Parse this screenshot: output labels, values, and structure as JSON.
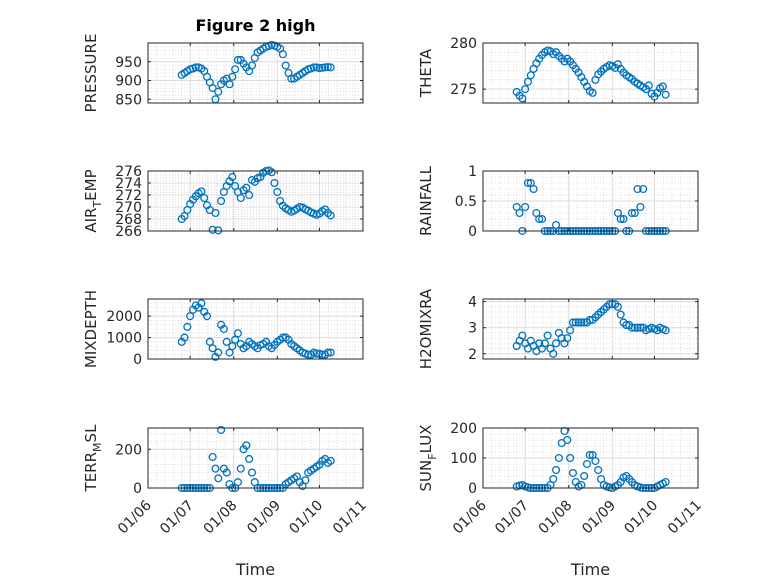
{
  "figure": {
    "title": "Figure 2 high",
    "marker_color": "#0072BD"
  },
  "chart_data": [
    {
      "type": "scatter",
      "ylabel": "PRESSURE",
      "title": "Figure 2 high",
      "ylim": [
        840,
        1000
      ],
      "yticks": [
        850,
        900,
        950
      ],
      "x": [
        "06/25",
        "06/27",
        "06/29",
        "07/01",
        "07/03",
        "07/05",
        "07/07",
        "07/09",
        "07/11",
        "07/13",
        "07/15",
        "07/17",
        "07/19",
        "07/21",
        "07/23",
        "07/25",
        "07/27",
        "07/29",
        "07/31",
        "08/02",
        "08/04",
        "08/06",
        "08/08",
        "08/10",
        "08/12",
        "08/14",
        "08/16",
        "08/18",
        "08/20",
        "08/22",
        "08/24",
        "08/26",
        "08/28",
        "08/30",
        "09/01",
        "09/03",
        "09/05",
        "09/07",
        "09/09",
        "09/11",
        "09/13",
        "09/15",
        "09/17",
        "09/19",
        "09/21",
        "09/23",
        "09/25",
        "09/27",
        "09/29",
        "10/01",
        "10/03",
        "10/05",
        "10/07",
        "10/09"
      ],
      "y": [
        915,
        920,
        925,
        930,
        932,
        935,
        935,
        932,
        925,
        910,
        895,
        880,
        850,
        870,
        890,
        900,
        905,
        890,
        910,
        930,
        955,
        955,
        945,
        935,
        925,
        940,
        960,
        975,
        980,
        985,
        990,
        992,
        995,
        993,
        990,
        985,
        970,
        940,
        920,
        905,
        905,
        910,
        915,
        920,
        925,
        930,
        932,
        935,
        935,
        933,
        934,
        935,
        936,
        935
      ]
    },
    {
      "type": "scatter",
      "ylabel": "THETA",
      "ylim": [
        273.5,
        280
      ],
      "yticks": [
        275,
        280
      ],
      "x": [
        "06/25",
        "06/27",
        "06/29",
        "07/01",
        "07/03",
        "07/05",
        "07/07",
        "07/09",
        "07/11",
        "07/13",
        "07/15",
        "07/17",
        "07/19",
        "07/21",
        "07/23",
        "07/25",
        "07/27",
        "07/29",
        "07/31",
        "08/02",
        "08/04",
        "08/06",
        "08/08",
        "08/10",
        "08/12",
        "08/14",
        "08/16",
        "08/18",
        "08/20",
        "08/22",
        "08/24",
        "08/26",
        "08/28",
        "08/30",
        "09/01",
        "09/03",
        "09/05",
        "09/07",
        "09/09",
        "09/11",
        "09/13",
        "09/15",
        "09/17",
        "09/19",
        "09/21",
        "09/23",
        "09/25",
        "09/27",
        "09/29",
        "10/01",
        "10/03",
        "10/05",
        "10/07",
        "10/09"
      ],
      "y": [
        274.7,
        274.3,
        274.0,
        275.0,
        275.8,
        276.5,
        277.2,
        277.8,
        278.3,
        278.7,
        279.0,
        279.2,
        279.1,
        278.8,
        279.0,
        278.6,
        278.3,
        278.0,
        278.3,
        278.0,
        277.6,
        277.2,
        276.8,
        276.3,
        275.8,
        275.3,
        274.8,
        274.6,
        276.0,
        276.6,
        276.9,
        277.2,
        277.4,
        277.6,
        277.5,
        277.3,
        277.7,
        277.2,
        276.8,
        276.5,
        276.3,
        276.1,
        275.8,
        275.6,
        275.4,
        275.2,
        275.0,
        275.4,
        274.5,
        274.2,
        274.6,
        275.1,
        275.3,
        274.4
      ]
    },
    {
      "type": "scatter",
      "ylabel": "AIR_T_EMP",
      "ylim": [
        266,
        276
      ],
      "yticks": [
        266,
        268,
        270,
        272,
        274,
        276
      ],
      "x": [
        "06/25",
        "06/27",
        "06/29",
        "07/01",
        "07/03",
        "07/05",
        "07/07",
        "07/09",
        "07/11",
        "07/13",
        "07/15",
        "07/17",
        "07/19",
        "07/21",
        "07/23",
        "07/25",
        "07/27",
        "07/29",
        "07/31",
        "08/02",
        "08/04",
        "08/06",
        "08/08",
        "08/10",
        "08/12",
        "08/14",
        "08/16",
        "08/18",
        "08/20",
        "08/22",
        "08/24",
        "08/26",
        "08/28",
        "08/30",
        "09/01",
        "09/03",
        "09/05",
        "09/07",
        "09/09",
        "09/11",
        "09/13",
        "09/15",
        "09/17",
        "09/19",
        "09/21",
        "09/23",
        "09/25",
        "09/27",
        "09/29",
        "10/01",
        "10/03",
        "10/05",
        "10/07",
        "10/09"
      ],
      "y": [
        268.0,
        268.5,
        269.5,
        270.5,
        271.2,
        271.8,
        272.3,
        272.6,
        271.5,
        270.3,
        269.5,
        266.2,
        269.0,
        266.1,
        271.0,
        272.5,
        273.5,
        274.3,
        275.0,
        273.5,
        272.5,
        271.5,
        272.8,
        273.2,
        272.0,
        274.5,
        274.2,
        274.8,
        275.0,
        275.7,
        276.0,
        276.1,
        275.8,
        274.0,
        272.5,
        271.0,
        270.2,
        269.8,
        269.5,
        269.2,
        269.4,
        269.7,
        270.0,
        269.9,
        269.6,
        269.4,
        269.1,
        268.9,
        268.7,
        268.9,
        269.3,
        269.6,
        269.0,
        268.6
      ]
    },
    {
      "type": "scatter",
      "ylabel": "RAINFALL",
      "ylim": [
        0,
        1
      ],
      "yticks": [
        0,
        0.5,
        1
      ],
      "x": [
        "06/25",
        "06/27",
        "06/29",
        "07/01",
        "07/03",
        "07/05",
        "07/07",
        "07/09",
        "07/11",
        "07/13",
        "07/15",
        "07/17",
        "07/19",
        "07/21",
        "07/23",
        "07/25",
        "07/27",
        "07/29",
        "07/31",
        "08/02",
        "08/04",
        "08/06",
        "08/08",
        "08/10",
        "08/12",
        "08/14",
        "08/16",
        "08/18",
        "08/20",
        "08/22",
        "08/24",
        "08/26",
        "08/28",
        "08/30",
        "09/01",
        "09/03",
        "09/05",
        "09/07",
        "09/09",
        "09/11",
        "09/13",
        "09/15",
        "09/17",
        "09/19",
        "09/21",
        "09/23",
        "09/25",
        "09/27",
        "09/29",
        "10/01",
        "10/03",
        "10/05",
        "10/07",
        "10/09"
      ],
      "y": [
        0.4,
        0.3,
        0.0,
        0.4,
        0.8,
        0.8,
        0.7,
        0.3,
        0.2,
        0.2,
        0.0,
        0.0,
        0.0,
        0.0,
        0.1,
        0.0,
        0.0,
        0.0,
        0.0,
        0.0,
        0.0,
        0.0,
        0.0,
        0.0,
        0.0,
        0.0,
        0.0,
        0.0,
        0.0,
        0.0,
        0.0,
        0.0,
        0.0,
        0.0,
        0.0,
        0.0,
        0.3,
        0.2,
        0.2,
        0.0,
        0.0,
        0.3,
        0.3,
        0.7,
        0.4,
        0.7,
        0.0,
        0.0,
        0.0,
        0.0,
        0.0,
        0.0,
        0.0,
        0.0
      ]
    },
    {
      "type": "scatter",
      "ylabel": "MIXDEPTH",
      "ylim": [
        0,
        2800
      ],
      "yticks": [
        0,
        1000,
        2000
      ],
      "x": [
        "06/25",
        "06/27",
        "06/29",
        "07/01",
        "07/03",
        "07/05",
        "07/07",
        "07/09",
        "07/11",
        "07/13",
        "07/15",
        "07/17",
        "07/19",
        "07/21",
        "07/23",
        "07/25",
        "07/27",
        "07/29",
        "07/31",
        "08/02",
        "08/04",
        "08/06",
        "08/08",
        "08/10",
        "08/12",
        "08/14",
        "08/16",
        "08/18",
        "08/20",
        "08/22",
        "08/24",
        "08/26",
        "08/28",
        "08/30",
        "09/01",
        "09/03",
        "09/05",
        "09/07",
        "09/09",
        "09/11",
        "09/13",
        "09/15",
        "09/17",
        "09/19",
        "09/21",
        "09/23",
        "09/25",
        "09/27",
        "09/29",
        "10/01",
        "10/03",
        "10/05",
        "10/07",
        "10/09"
      ],
      "y": [
        800,
        1000,
        1500,
        2000,
        2300,
        2500,
        2400,
        2600,
        2200,
        2000,
        800,
        500,
        100,
        300,
        1600,
        1400,
        800,
        300,
        600,
        900,
        1200,
        700,
        500,
        600,
        800,
        700,
        600,
        500,
        650,
        700,
        800,
        600,
        500,
        650,
        800,
        900,
        1000,
        1000,
        900,
        700,
        600,
        500,
        400,
        300,
        250,
        200,
        200,
        300,
        250,
        250,
        200,
        200,
        300,
        300
      ]
    },
    {
      "type": "scatter",
      "ylabel": "H2OMIXRA",
      "ylim": [
        1.8,
        4.1
      ],
      "yticks": [
        2,
        3,
        4
      ],
      "x": [
        "06/25",
        "06/27",
        "06/29",
        "07/01",
        "07/03",
        "07/05",
        "07/07",
        "07/09",
        "07/11",
        "07/13",
        "07/15",
        "07/17",
        "07/19",
        "07/21",
        "07/23",
        "07/25",
        "07/27",
        "07/29",
        "07/31",
        "08/02",
        "08/04",
        "08/06",
        "08/08",
        "08/10",
        "08/12",
        "08/14",
        "08/16",
        "08/18",
        "08/20",
        "08/22",
        "08/24",
        "08/26",
        "08/28",
        "08/30",
        "09/01",
        "09/03",
        "09/05",
        "09/07",
        "09/09",
        "09/11",
        "09/13",
        "09/15",
        "09/17",
        "09/19",
        "09/21",
        "09/23",
        "09/25",
        "09/27",
        "09/29",
        "10/01",
        "10/03",
        "10/05",
        "10/07",
        "10/09"
      ],
      "y": [
        2.3,
        2.5,
        2.7,
        2.4,
        2.2,
        2.5,
        2.3,
        2.1,
        2.4,
        2.2,
        2.4,
        2.7,
        2.2,
        2.0,
        2.4,
        2.8,
        2.6,
        2.4,
        2.6,
        2.9,
        3.2,
        3.2,
        3.2,
        3.2,
        3.2,
        3.2,
        3.3,
        3.3,
        3.4,
        3.5,
        3.6,
        3.7,
        3.8,
        3.9,
        3.9,
        3.9,
        3.8,
        3.5,
        3.2,
        3.1,
        3.1,
        3.0,
        3.0,
        3.0,
        3.0,
        3.0,
        2.9,
        2.95,
        3.0,
        2.95,
        2.9,
        3.0,
        2.95,
        2.9
      ]
    },
    {
      "type": "scatter",
      "ylabel": "TERR_M_SL",
      "ylim": [
        0,
        310
      ],
      "yticks": [
        0,
        200
      ],
      "x": [
        "06/25",
        "06/27",
        "06/29",
        "07/01",
        "07/03",
        "07/05",
        "07/07",
        "07/09",
        "07/11",
        "07/13",
        "07/15",
        "07/17",
        "07/19",
        "07/21",
        "07/23",
        "07/25",
        "07/27",
        "07/29",
        "07/31",
        "08/02",
        "08/04",
        "08/06",
        "08/08",
        "08/10",
        "08/12",
        "08/14",
        "08/16",
        "08/18",
        "08/20",
        "08/22",
        "08/24",
        "08/26",
        "08/28",
        "08/30",
        "09/01",
        "09/03",
        "09/05",
        "09/07",
        "09/09",
        "09/11",
        "09/13",
        "09/15",
        "09/17",
        "09/19",
        "09/21",
        "09/23",
        "09/25",
        "09/27",
        "09/29",
        "10/01",
        "10/03",
        "10/05",
        "10/07",
        "10/09"
      ],
      "y": [
        0,
        0,
        0,
        0,
        0,
        0,
        0,
        0,
        0,
        0,
        0,
        160,
        100,
        50,
        300,
        100,
        80,
        20,
        0,
        0,
        30,
        100,
        200,
        220,
        150,
        80,
        30,
        0,
        0,
        0,
        0,
        0,
        0,
        0,
        0,
        0,
        0,
        20,
        30,
        40,
        50,
        60,
        30,
        10,
        40,
        80,
        90,
        100,
        110,
        120,
        140,
        150,
        130,
        140
      ]
    },
    {
      "type": "scatter",
      "ylabel": "SUN_F_LUX",
      "ylim": [
        0,
        200
      ],
      "yticks": [
        0,
        100,
        200
      ],
      "x": [
        "06/25",
        "06/27",
        "06/29",
        "07/01",
        "07/03",
        "07/05",
        "07/07",
        "07/09",
        "07/11",
        "07/13",
        "07/15",
        "07/17",
        "07/19",
        "07/21",
        "07/23",
        "07/25",
        "07/27",
        "07/29",
        "07/31",
        "08/02",
        "08/04",
        "08/06",
        "08/08",
        "08/10",
        "08/12",
        "08/14",
        "08/16",
        "08/18",
        "08/20",
        "08/22",
        "08/24",
        "08/26",
        "08/28",
        "08/30",
        "09/01",
        "09/03",
        "09/05",
        "09/07",
        "09/09",
        "09/11",
        "09/13",
        "09/15",
        "09/17",
        "09/19",
        "09/21",
        "09/23",
        "09/25",
        "09/27",
        "09/29",
        "10/01",
        "10/03",
        "10/05",
        "10/07",
        "10/09"
      ],
      "y": [
        5,
        8,
        10,
        5,
        2,
        0,
        0,
        0,
        0,
        0,
        0,
        0,
        10,
        30,
        60,
        100,
        150,
        190,
        160,
        100,
        50,
        20,
        5,
        10,
        40,
        80,
        110,
        110,
        90,
        60,
        30,
        10,
        5,
        2,
        0,
        5,
        10,
        20,
        35,
        40,
        30,
        20,
        10,
        5,
        2,
        0,
        0,
        0,
        0,
        0,
        5,
        10,
        15,
        20
      ]
    }
  ],
  "xaxis": {
    "label": "Time",
    "ticks": [
      "01/06",
      "01/07",
      "01/08",
      "01/09",
      "01/10",
      "01/11"
    ],
    "tick_dates": [
      "06/01",
      "07/01",
      "08/01",
      "09/01",
      "10/01",
      "11/01"
    ]
  }
}
